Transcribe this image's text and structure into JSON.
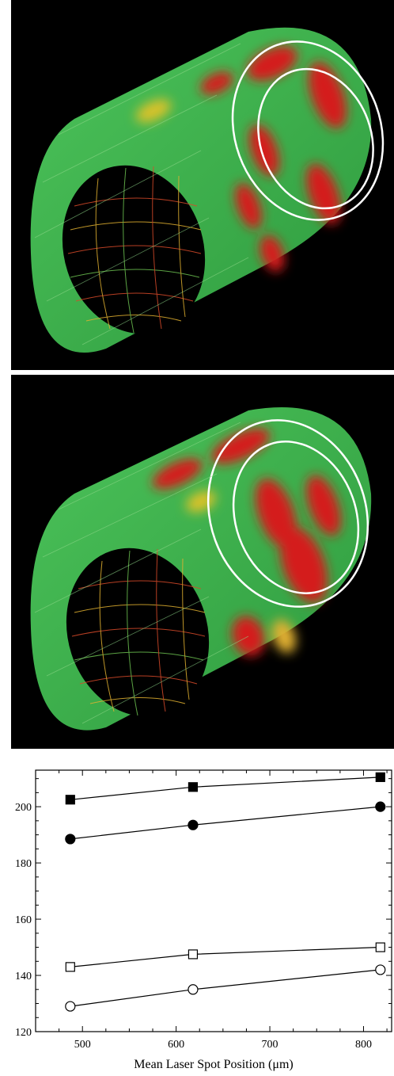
{
  "figure": {
    "panels": [
      {
        "id": "top",
        "description_colors": {
          "body": "#3fb24a",
          "hot": "#d11e1e",
          "ring": "#ffffff"
        }
      },
      {
        "id": "bottom",
        "description_colors": {
          "body": "#3fb24a",
          "hot": "#d11e1e",
          "ring": "#ffffff"
        }
      }
    ]
  },
  "chart_data": {
    "type": "scatter",
    "xlabel": "Mean Laser Spot Position (μm)",
    "ylabel": "",
    "xlim": [
      450,
      830
    ],
    "ylim": [
      120,
      213
    ],
    "x_ticks": [
      500,
      600,
      700,
      800
    ],
    "y_ticks": [
      120,
      140,
      160,
      180,
      200
    ],
    "series": [
      {
        "marker": "square-filled",
        "points": [
          [
            487,
            202.5
          ],
          [
            618,
            207.0
          ],
          [
            818,
            210.5
          ]
        ]
      },
      {
        "marker": "circle-filled",
        "points": [
          [
            487,
            188.5
          ],
          [
            618,
            193.5
          ],
          [
            818,
            200.0
          ]
        ]
      },
      {
        "marker": "square-open",
        "points": [
          [
            487,
            143.0
          ],
          [
            618,
            147.5
          ],
          [
            818,
            150.0
          ]
        ]
      },
      {
        "marker": "circle-open",
        "points": [
          [
            487,
            129.0
          ],
          [
            618,
            135.0
          ],
          [
            818,
            142.0
          ]
        ]
      }
    ]
  }
}
